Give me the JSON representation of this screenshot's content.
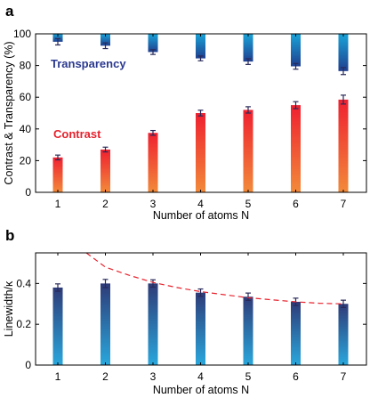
{
  "chart_data": [
    {
      "panel": "a",
      "type": "bar",
      "categories": [
        "1",
        "2",
        "3",
        "4",
        "5",
        "6",
        "7"
      ],
      "xlabel": "Number of atoms N",
      "ylabel": "Contrast & Transparency (%)",
      "ylim": [
        0,
        100
      ],
      "yticks": [
        "0",
        "20",
        "40",
        "60",
        "80",
        "100"
      ],
      "grid": false,
      "series": [
        {
          "name": "Transparency",
          "label_color": "#2b3990",
          "values": [
            95,
            92.5,
            88.5,
            84.5,
            82.5,
            79.5,
            76.5
          ],
          "errors": [
            2,
            1.8,
            1.5,
            1.5,
            1.8,
            1.8,
            2.2
          ],
          "gradient": [
            "#19a3d8",
            "#1f3f8f"
          ]
        },
        {
          "name": "Contrast",
          "label_color": "#e8222d",
          "values": [
            22,
            27,
            37.5,
            50,
            52,
            55,
            58.5
          ],
          "errors": [
            1.5,
            1.5,
            1.5,
            1.8,
            2,
            2.2,
            2.8
          ],
          "gradient": [
            "#ef2030",
            "#f28a3a"
          ]
        }
      ]
    },
    {
      "panel": "b",
      "type": "bar",
      "categories": [
        "1",
        "2",
        "3",
        "4",
        "5",
        "6",
        "7"
      ],
      "xlabel": "Number of atoms N",
      "ylabel": "Linewidth/κ",
      "ylim": [
        0,
        0.55
      ],
      "yticks": [
        "0",
        "0.2",
        "0.4"
      ],
      "grid": false,
      "series": [
        {
          "values": [
            0.38,
            0.4,
            0.4,
            0.355,
            0.335,
            0.31,
            0.3
          ],
          "errors": [
            0.018,
            0.02,
            0.018,
            0.018,
            0.018,
            0.018,
            0.018
          ],
          "gradient": [
            "#2e3b78",
            "#2aa7dc"
          ]
        }
      ],
      "curve": {
        "style": "dashed",
        "color": "#e8222d",
        "x": [
          1.6,
          2,
          2.5,
          3,
          3.5,
          4,
          4.5,
          5,
          5.5,
          6,
          6.5,
          7
        ],
        "y": [
          0.55,
          0.48,
          0.44,
          0.405,
          0.38,
          0.36,
          0.345,
          0.33,
          0.32,
          0.31,
          0.303,
          0.3
        ]
      }
    }
  ]
}
